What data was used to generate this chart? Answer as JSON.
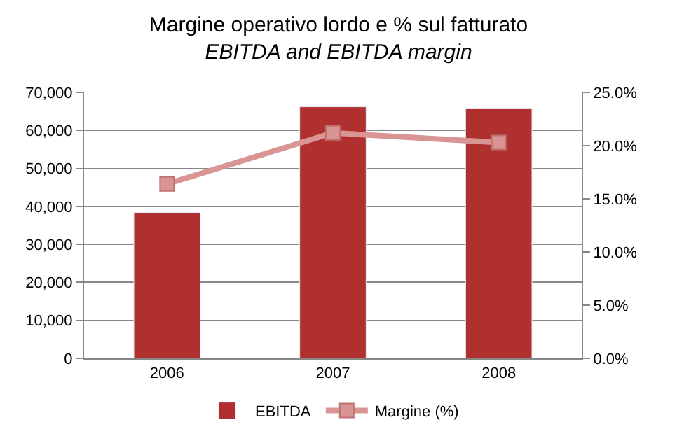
{
  "chart_data": {
    "type": "bar",
    "title": "Margine operativo lordo e % sul fatturato",
    "subtitle": "EBITDA and EBITDA margin",
    "categories": [
      "2006",
      "2007",
      "2008"
    ],
    "series": [
      {
        "name": "EBITDA",
        "color": "#b03030",
        "values": [
          38400,
          66200,
          65800
        ]
      },
      {
        "name": "Margine (%)",
        "type": "line",
        "axis": "y2",
        "color": "#d99594",
        "marker": "square",
        "values": [
          16.4,
          21.2,
          20.3
        ]
      }
    ],
    "ylim": [
      0,
      70000
    ],
    "yticks": [
      {
        "value": 0,
        "label": "0"
      },
      {
        "value": 10000,
        "label": "10,000"
      },
      {
        "value": 20000,
        "label": "20,000"
      },
      {
        "value": 30000,
        "label": "30,000"
      },
      {
        "value": 40000,
        "label": "40,000"
      },
      {
        "value": 50000,
        "label": "50,000"
      },
      {
        "value": 60000,
        "label": "60,000"
      },
      {
        "value": 70000,
        "label": "70,000"
      }
    ],
    "y2lim": [
      0,
      25
    ],
    "y2ticks": [
      {
        "value": 0,
        "label": "0.0%"
      },
      {
        "value": 5,
        "label": "5.0%"
      },
      {
        "value": 10,
        "label": "10.0%"
      },
      {
        "value": 15,
        "label": "15.0%"
      },
      {
        "value": 20,
        "label": "20.0%"
      },
      {
        "value": 25,
        "label": "25.0%"
      }
    ],
    "grid": "y",
    "legend": "bottom"
  }
}
